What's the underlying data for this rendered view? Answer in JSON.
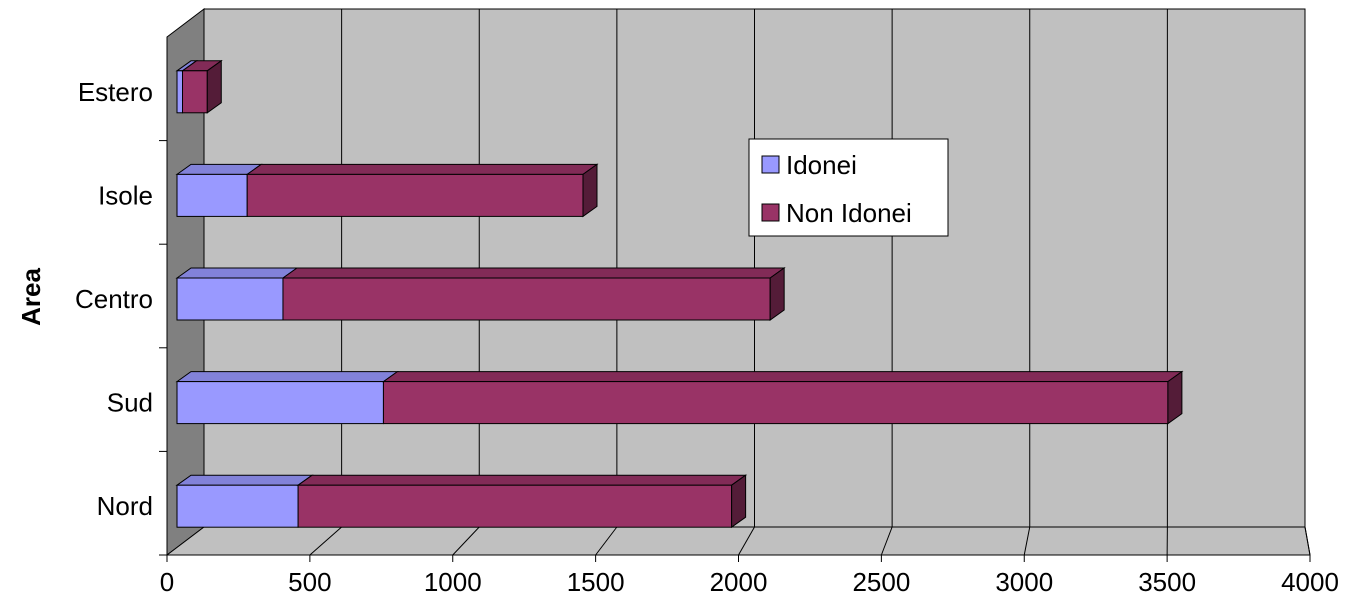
{
  "chart_data": {
    "type": "bar",
    "orientation": "horizontal",
    "stacked": true,
    "three_d": true,
    "title": "",
    "xlabel": "",
    "ylabel": "Area",
    "xlim": [
      0,
      4000
    ],
    "xticks": [
      0,
      500,
      1000,
      1500,
      2000,
      2500,
      3000,
      3500,
      4000
    ],
    "grid": true,
    "legend_position": "center-right",
    "categories": [
      "Nord",
      "Sud",
      "Centro",
      "Isole",
      "Estero"
    ],
    "series": [
      {
        "name": "Idonei",
        "values": [
          440,
          750,
          385,
          255,
          20
        ],
        "color": "#9999ff"
      },
      {
        "name": "Non Idonei",
        "values": [
          1575,
          2850,
          1770,
          1220,
          90
        ],
        "color": "#993366"
      }
    ],
    "colors": {
      "wall": "#c0c0c0",
      "side_wall": "#808080",
      "floor": "#c0c0c0",
      "grid": "#000000"
    }
  }
}
